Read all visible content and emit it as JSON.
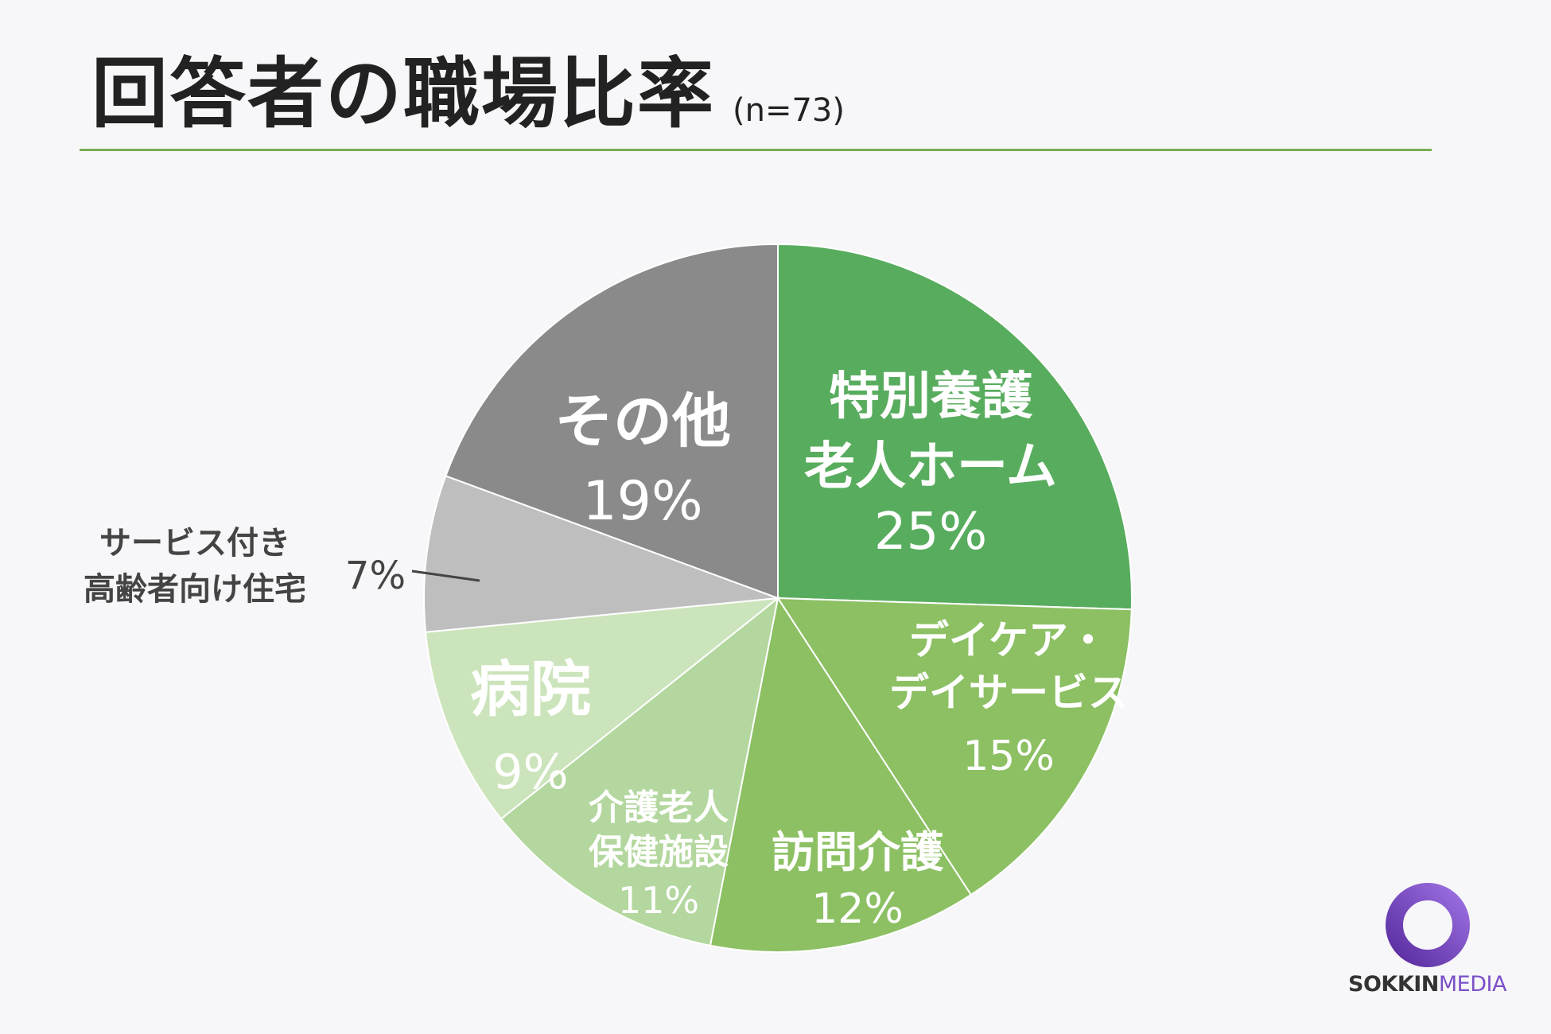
{
  "header": {
    "title": "回答者の職場比率",
    "subtitle": "(n=73)"
  },
  "chart_data": {
    "type": "pie",
    "title": "回答者の職場比率",
    "subtitle": "(n=73)",
    "slices": [
      {
        "label": "特別養護老人ホーム",
        "lines": [
          "特別養護",
          "老人ホーム"
        ],
        "value": 25,
        "value_label": "25%",
        "color": "#58ac5e"
      },
      {
        "label": "デイケア・デイサービス",
        "lines": [
          "デイケア・",
          "デイサービス"
        ],
        "value": 15,
        "value_label": "15%",
        "color": "#8cc063"
      },
      {
        "label": "訪問介護",
        "lines": [
          "訪問介護"
        ],
        "value": 12,
        "value_label": "12%",
        "color": "#8cc063"
      },
      {
        "label": "介護老人保健施設",
        "lines": [
          "介護老人",
          "保健施設"
        ],
        "value": 11,
        "value_label": "11%",
        "color": "#b3d79e"
      },
      {
        "label": "病院",
        "lines": [
          "病院"
        ],
        "value": 9,
        "value_label": "9%",
        "color": "#cce4bb"
      },
      {
        "label": "サービス付き高齢者向け住宅",
        "lines": [
          "サービス付き",
          "高齢者向け住宅"
        ],
        "value": 7,
        "value_label": "7%",
        "color": "#bebebe"
      },
      {
        "label": "その他",
        "lines": [
          "その他"
        ],
        "value": 19,
        "value_label": "19%",
        "color": "#8a8a8a"
      }
    ]
  },
  "logo": {
    "text_bold": "SOKKIN",
    "text_light": "MEDIA",
    "ring_colors": [
      "#5a2da0",
      "#9b6fe0"
    ]
  }
}
